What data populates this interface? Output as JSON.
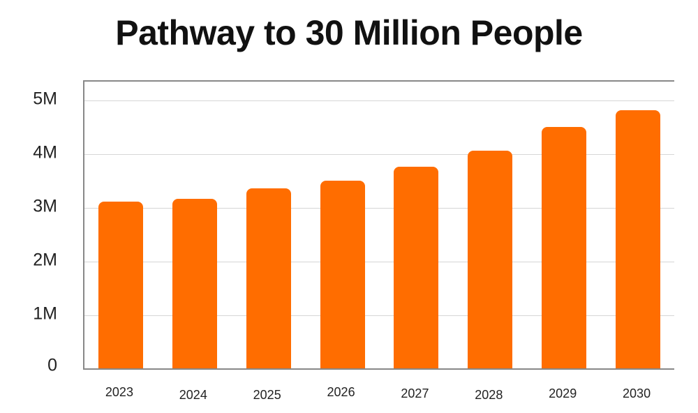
{
  "chart_data": {
    "type": "bar",
    "title": "Pathway to 30 Million People",
    "xlabel": "",
    "ylabel": "",
    "categories": [
      "2023",
      "2024",
      "2025",
      "2026",
      "2027",
      "2028",
      "2029",
      "2030"
    ],
    "values": [
      3100000,
      3150000,
      3350000,
      3500000,
      3750000,
      4050000,
      4500000,
      4800000
    ],
    "ylim": [
      0,
      5200000
    ],
    "yticks": [
      0,
      1000000,
      2000000,
      3000000,
      4000000,
      5000000
    ],
    "ytick_labels": [
      "0",
      "1M",
      "2M",
      "3M",
      "4M",
      "5M"
    ],
    "grid": true,
    "legend": null,
    "bar_color": "#ff6d00"
  }
}
